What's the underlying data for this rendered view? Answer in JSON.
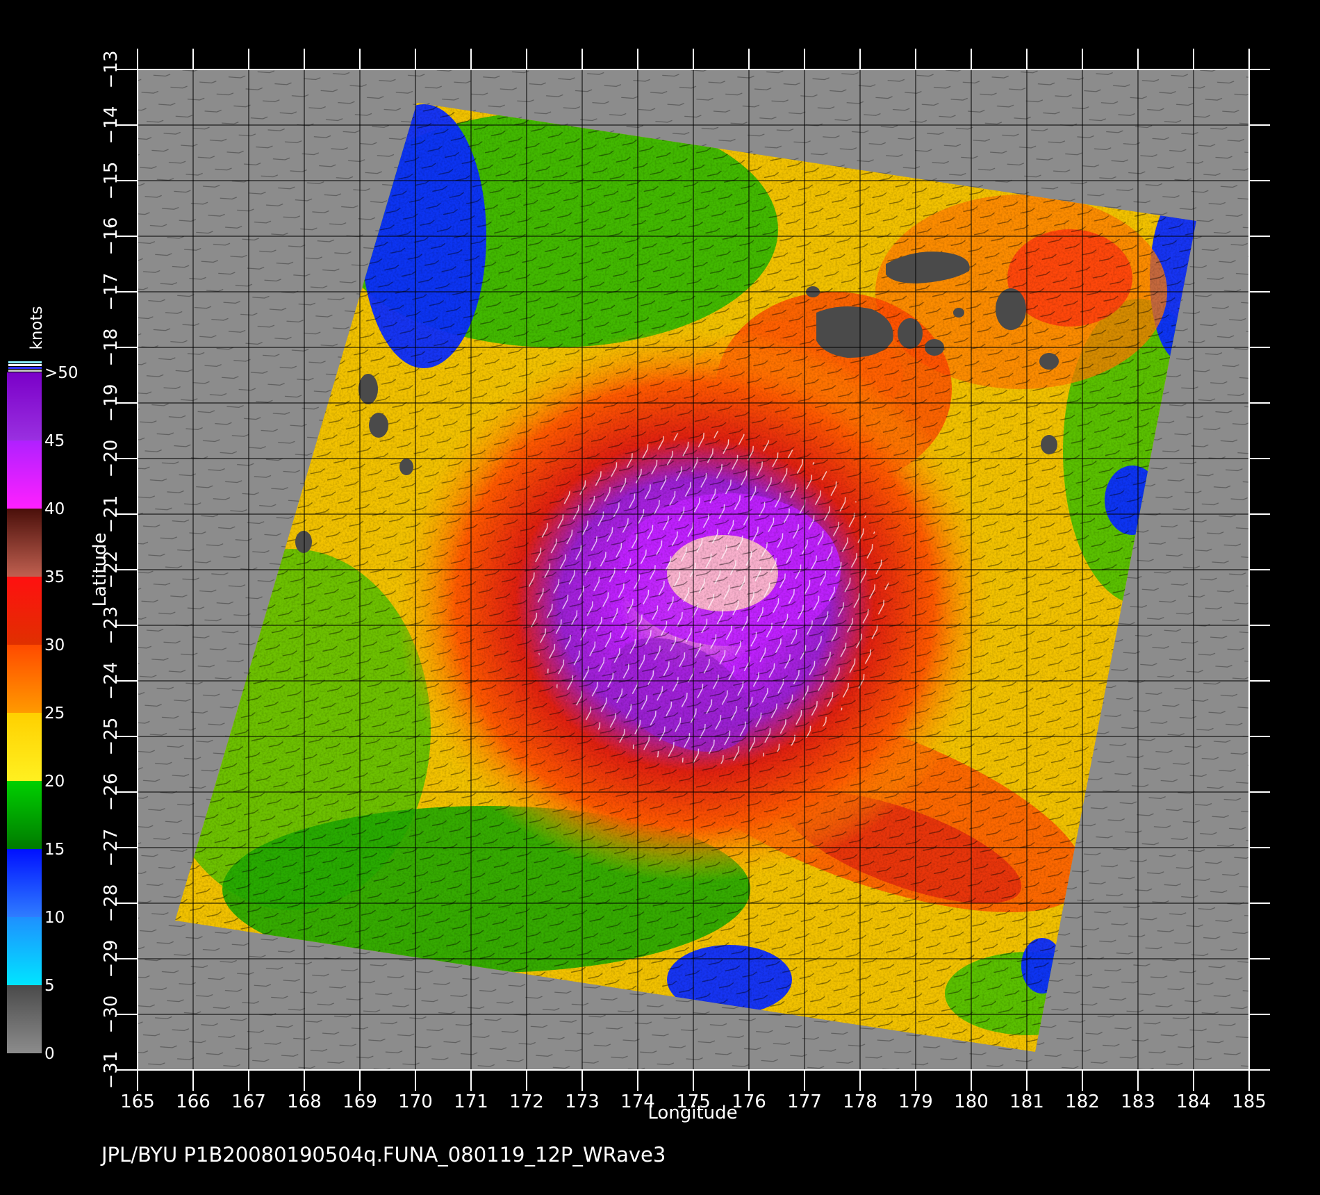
{
  "footer": "JPL/BYU  P1B20080190504q.FUNA_080119_12P_WRave3",
  "axes": {
    "x_title": "Longitude",
    "y_title": "Latitude",
    "x_range": [
      165,
      185
    ],
    "y_range": [
      -13,
      -31
    ],
    "x_ticks": [
      "165",
      "166",
      "167",
      "168",
      "169",
      "170",
      "171",
      "172",
      "173",
      "174",
      "175",
      "176",
      "177",
      "178",
      "179",
      "180",
      "181",
      "182",
      "183",
      "184",
      "185"
    ],
    "y_ticks": [
      "−13",
      "−14",
      "−15",
      "−16",
      "−17",
      "−18",
      "−19",
      "−20",
      "−21",
      "−22",
      "−23",
      "−24",
      "−25",
      "−26",
      "−27",
      "−28",
      "−29",
      "−30",
      "−31"
    ]
  },
  "colorbar": {
    "unit": "knots",
    "labels": [
      "0",
      "5",
      "10",
      "15",
      "20",
      "25",
      "30",
      "35",
      "40",
      "45",
      ">50"
    ],
    "bands": [
      {
        "from": 0,
        "to": 5,
        "top": "#4a4a4a",
        "bottom": "#8c8c8c"
      },
      {
        "from": 5,
        "to": 10,
        "top": "#1e90ff",
        "bottom": "#00e5ff"
      },
      {
        "from": 10,
        "to": 15,
        "top": "#0010ff",
        "bottom": "#2f7dff"
      },
      {
        "from": 15,
        "to": 20,
        "top": "#00d000",
        "bottom": "#007a00"
      },
      {
        "from": 20,
        "to": 25,
        "top": "#ffd000",
        "bottom": "#fff020"
      },
      {
        "from": 25,
        "to": 30,
        "top": "#ff4a00",
        "bottom": "#ff9a00"
      },
      {
        "from": 30,
        "to": 35,
        "top": "#ff1010",
        "bottom": "#e03000"
      },
      {
        "from": 35,
        "to": 40,
        "top": "#4a0f0a",
        "bottom": "#c06050"
      },
      {
        "from": 40,
        "to": 45,
        "top": "#b020ff",
        "bottom": "#ff20ff"
      },
      {
        "from": 45,
        "to": 50,
        "top": "#7a00c8",
        "bottom": "#9a30e0"
      }
    ]
  },
  "colors": {
    "background": "#000000",
    "plot_background": "#8c8c8c",
    "land": "#4a4a4a",
    "grid": "#000000"
  }
}
